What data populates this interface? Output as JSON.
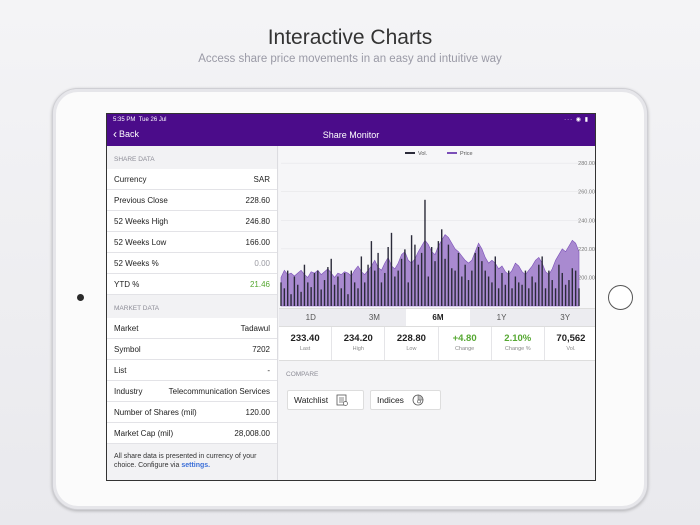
{
  "header": {
    "title": "Interactive Charts",
    "subtitle": "Access share price movements in an easy and intuitive way"
  },
  "status_bar": {
    "time": "5:35 PM",
    "date": "Tue 26 Jul",
    "icons": "··· ◉ ▮"
  },
  "nav": {
    "back_label": "Back",
    "title": "Share Monitor"
  },
  "share_data": {
    "section_label": "SHARE DATA",
    "rows": [
      {
        "label": "Currency",
        "value": "SAR"
      },
      {
        "label": "Previous Close",
        "value": "228.60"
      },
      {
        "label": "52 Weeks High",
        "value": "246.80"
      },
      {
        "label": "52 Weeks Low",
        "value": "166.00"
      },
      {
        "label": "52 Weeks %",
        "value": "0.00"
      },
      {
        "label": "YTD %",
        "value": "21.46"
      }
    ]
  },
  "market_data": {
    "section_label": "MARKET DATA",
    "rows": [
      {
        "label": "Market",
        "value": "Tadawul"
      },
      {
        "label": "Symbol",
        "value": "7202"
      },
      {
        "label": "List",
        "value": "-"
      },
      {
        "label": "Industry",
        "value": "Telecommunication Services"
      },
      {
        "label": "Number of Shares (mil)",
        "value": "120.00"
      },
      {
        "label": "Market Cap (mil)",
        "value": "28,008.00"
      }
    ]
  },
  "note": {
    "text": "All share data is presented in currency of your choice. Configure via ",
    "link": "settings."
  },
  "chart_data": {
    "type": "area",
    "legend": [
      "Vol.",
      "Price"
    ],
    "legend_position": "top",
    "y_ticks": [
      "280.00",
      "260.00",
      "240.00",
      "220.00",
      "200.00"
    ],
    "ylim": [
      180,
      285
    ],
    "price": [
      200,
      205,
      202,
      203,
      201,
      203,
      205,
      202,
      200,
      204,
      203,
      205,
      202,
      204,
      206,
      203,
      200,
      203,
      202,
      204,
      203,
      201,
      205,
      208,
      204,
      202,
      205,
      208,
      212,
      207,
      205,
      210,
      214,
      208,
      206,
      210,
      216,
      218,
      212,
      210,
      213,
      218,
      222,
      226,
      223,
      218,
      216,
      222,
      226,
      230,
      228,
      224,
      220,
      218,
      215,
      212,
      210,
      212,
      218,
      224,
      220,
      214,
      210,
      212,
      210,
      206,
      208,
      204,
      202,
      205,
      210,
      208,
      204,
      202,
      205,
      208,
      212,
      214,
      210,
      204,
      202,
      206,
      212,
      216,
      220,
      218,
      222,
      226,
      224,
      218
    ],
    "volume_relative": [
      0.2,
      0.15,
      0.3,
      0.1,
      0.25,
      0.18,
      0.12,
      0.35,
      0.2,
      0.16,
      0.28,
      0.3,
      0.14,
      0.22,
      0.33,
      0.4,
      0.18,
      0.25,
      0.15,
      0.28,
      0.1,
      0.3,
      0.2,
      0.15,
      0.42,
      0.2,
      0.35,
      0.55,
      0.3,
      0.45,
      0.2,
      0.28,
      0.5,
      0.62,
      0.25,
      0.3,
      0.4,
      0.48,
      0.2,
      0.6,
      0.52,
      0.35,
      0.45,
      0.9,
      0.25,
      0.5,
      0.38,
      0.55,
      0.65,
      0.4,
      0.52,
      0.32,
      0.3,
      0.45,
      0.25,
      0.35,
      0.22,
      0.3,
      0.45,
      0.5,
      0.38,
      0.3,
      0.25,
      0.2,
      0.42,
      0.15,
      0.28,
      0.18,
      0.3,
      0.15,
      0.25,
      0.2,
      0.18,
      0.3,
      0.15,
      0.25,
      0.2,
      0.35,
      0.42,
      0.15,
      0.3,
      0.22,
      0.15,
      0.35,
      0.28,
      0.18,
      0.22,
      0.32,
      0.3,
      0.15
    ]
  },
  "range_tabs": [
    "1D",
    "3M",
    "6M",
    "1Y",
    "3Y"
  ],
  "stats": [
    {
      "value": "233.40",
      "label": "Last"
    },
    {
      "value": "234.20",
      "label": "High"
    },
    {
      "value": "228.80",
      "label": "Low"
    },
    {
      "value": "+4.80",
      "label": "Change"
    },
    {
      "value": "2.10%",
      "label": "Change %"
    },
    {
      "value": "70,562",
      "label": "Vol."
    }
  ],
  "compare": {
    "section_label": "COMPARE",
    "watchlist_label": "Watchlist",
    "indices_label": "Indices"
  },
  "colors": {
    "brand": "#4b0c8a",
    "price_fill": "#a98ad0",
    "volume": "#2b2b3a",
    "positive": "#56a832"
  }
}
